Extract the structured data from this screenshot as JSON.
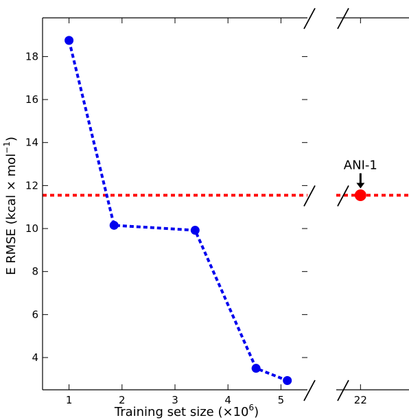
{
  "chart_data": {
    "type": "line",
    "xlabel_main": "Training set size",
    "xlabel_unit": "(×10",
    "xlabel_exp": "6",
    "xlabel_close": ")",
    "ylabel_main": "E RMSE",
    "ylabel_unit": "(kcal × mol",
    "ylabel_exp": "−1",
    "ylabel_close": ")",
    "ylim": [
      2.5,
      19.8
    ],
    "yticks": [
      4,
      6,
      8,
      10,
      12,
      14,
      16,
      18
    ],
    "segments": [
      {
        "xlim": [
          0.5,
          5.5
        ],
        "xticks": [
          1,
          2,
          3,
          4,
          5
        ]
      },
      {
        "xlim": [
          21.5,
          23
        ],
        "xticks": [
          22
        ]
      }
    ],
    "series": [
      {
        "color": "#0000ee",
        "x": [
          1.0,
          1.85,
          3.38,
          4.53,
          5.12
        ],
        "y": [
          18.75,
          10.15,
          9.92,
          3.5,
          2.93
        ]
      }
    ],
    "reference": {
      "y": 11.55,
      "color": "#ff0000"
    },
    "highlight": {
      "x": 22,
      "y": 11.55,
      "color": "#ff0000"
    },
    "annotation": {
      "text": "ANI-1",
      "x": 22,
      "y": 11.55
    }
  }
}
